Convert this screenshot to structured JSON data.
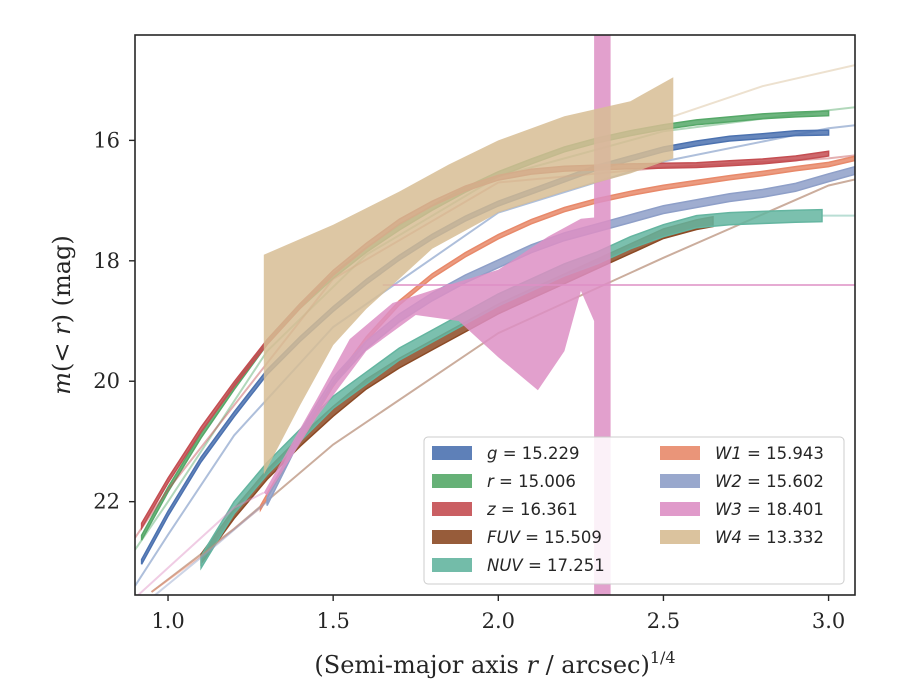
{
  "chart_data": {
    "type": "line",
    "xlabel_main": "(Semi-major axis ",
    "xlabel_var": "r",
    "xlabel_rest": " / arcsec)",
    "xlabel_sup": "1/4",
    "ylabel_main": "m(< r) (mag)",
    "ylabel_pre": "m",
    "ylabel_paren_open": "(< ",
    "ylabel_var": "r",
    "ylabel_paren_close": ") (mag)",
    "xlim": [
      0.9,
      3.08
    ],
    "ylim": [
      23.55,
      14.25
    ],
    "y_inverted": true,
    "grid": false,
    "legend_position": "lower-right",
    "xticks": [
      1.0,
      1.5,
      2.0,
      2.5,
      3.0
    ],
    "xtick_labels": [
      "1.0",
      "1.5",
      "2.0",
      "2.5",
      "3.0"
    ],
    "yticks": [
      16,
      18,
      20,
      22
    ],
    "ytick_labels": [
      "16",
      "18",
      "20",
      "22"
    ],
    "series": [
      {
        "name": "g = 15.229",
        "label_var": "g",
        "label_value": "= 15.229",
        "color": "#4c72b0",
        "kind": "band",
        "points": [
          [
            0.92,
            23.0
          ],
          [
            1.0,
            22.2
          ],
          [
            1.1,
            21.3
          ],
          [
            1.2,
            20.55
          ],
          [
            1.3,
            19.85
          ],
          [
            1.4,
            19.3
          ],
          [
            1.5,
            18.8
          ],
          [
            1.6,
            18.35
          ],
          [
            1.7,
            17.95
          ],
          [
            1.8,
            17.6
          ],
          [
            1.9,
            17.3
          ],
          [
            2.0,
            17.05
          ],
          [
            2.1,
            16.85
          ],
          [
            2.2,
            16.65
          ],
          [
            2.3,
            16.45
          ],
          [
            2.4,
            16.3
          ],
          [
            2.5,
            16.15
          ],
          [
            2.6,
            16.05
          ],
          [
            2.7,
            15.97
          ],
          [
            2.8,
            15.93
          ],
          [
            2.9,
            15.88
          ],
          [
            3.0,
            15.87
          ]
        ],
        "width": 0.08,
        "extension": [
          [
            0.9,
            23.4
          ],
          [
            1.0,
            22.55
          ],
          [
            1.2,
            20.9
          ],
          [
            1.5,
            19.1
          ],
          [
            2.0,
            17.2
          ],
          [
            2.5,
            16.35
          ],
          [
            3.0,
            15.8
          ],
          [
            3.08,
            15.75
          ]
        ]
      },
      {
        "name": "r = 15.006",
        "label_var": "r",
        "label_value": "= 15.006",
        "color": "#55a868",
        "kind": "band",
        "points": [
          [
            0.92,
            22.6
          ],
          [
            1.0,
            21.8
          ],
          [
            1.1,
            20.9
          ],
          [
            1.2,
            20.1
          ],
          [
            1.3,
            19.35
          ],
          [
            1.4,
            18.75
          ],
          [
            1.5,
            18.25
          ],
          [
            1.6,
            17.82
          ],
          [
            1.7,
            17.45
          ],
          [
            1.8,
            17.12
          ],
          [
            1.9,
            16.82
          ],
          [
            2.0,
            16.56
          ],
          [
            2.1,
            16.35
          ],
          [
            2.2,
            16.15
          ],
          [
            2.3,
            16.0
          ],
          [
            2.4,
            15.88
          ],
          [
            2.5,
            15.78
          ],
          [
            2.6,
            15.7
          ],
          [
            2.7,
            15.65
          ],
          [
            2.8,
            15.6
          ],
          [
            2.9,
            15.57
          ],
          [
            3.0,
            15.55
          ]
        ],
        "width": 0.08,
        "extension": [
          [
            0.9,
            22.8
          ],
          [
            1.0,
            22.0
          ],
          [
            1.3,
            19.5
          ],
          [
            1.6,
            17.9
          ],
          [
            2.0,
            16.6
          ],
          [
            2.5,
            15.85
          ],
          [
            3.0,
            15.5
          ],
          [
            3.08,
            15.45
          ]
        ]
      },
      {
        "name": "z = 16.361",
        "label_var": "z",
        "label_value": "= 16.361",
        "color": "#c44e52",
        "kind": "band",
        "points": [
          [
            0.92,
            22.4
          ],
          [
            1.0,
            21.65
          ],
          [
            1.1,
            20.8
          ],
          [
            1.2,
            20.05
          ],
          [
            1.3,
            19.35
          ],
          [
            1.4,
            18.75
          ],
          [
            1.5,
            18.2
          ],
          [
            1.6,
            17.75
          ],
          [
            1.7,
            17.35
          ],
          [
            1.8,
            17.05
          ],
          [
            1.9,
            16.8
          ],
          [
            2.0,
            16.62
          ],
          [
            2.1,
            16.52
          ],
          [
            2.2,
            16.47
          ],
          [
            2.3,
            16.45
          ],
          [
            2.4,
            16.43
          ],
          [
            2.5,
            16.42
          ],
          [
            2.6,
            16.41
          ],
          [
            2.7,
            16.38
          ],
          [
            2.8,
            16.35
          ],
          [
            2.9,
            16.3
          ],
          [
            3.0,
            16.22
          ]
        ],
        "width": 0.08,
        "extension": [
          [
            0.9,
            22.6
          ],
          [
            1.0,
            21.8
          ],
          [
            1.5,
            18.3
          ],
          [
            2.0,
            16.7
          ],
          [
            2.5,
            16.45
          ],
          [
            3.0,
            16.3
          ],
          [
            3.08,
            16.25
          ]
        ]
      },
      {
        "name": "FUV = 15.509",
        "label_var": "FUV",
        "label_value": "= 15.509",
        "color": "#8c4a25",
        "kind": "band",
        "points": [
          [
            1.1,
            22.95
          ],
          [
            1.2,
            22.2
          ],
          [
            1.3,
            21.55
          ],
          [
            1.4,
            21.0
          ],
          [
            1.5,
            20.5
          ],
          [
            1.6,
            20.05
          ],
          [
            1.7,
            19.7
          ],
          [
            1.8,
            19.4
          ],
          [
            1.9,
            19.1
          ],
          [
            2.0,
            18.8
          ],
          [
            2.1,
            18.55
          ],
          [
            2.2,
            18.3
          ],
          [
            2.3,
            18.05
          ],
          [
            2.4,
            17.8
          ],
          [
            2.5,
            17.55
          ],
          [
            2.6,
            17.4
          ],
          [
            2.65,
            17.35
          ]
        ],
        "width": 0.16,
        "extension": [
          [
            0.95,
            23.5
          ],
          [
            1.2,
            22.45
          ],
          [
            1.5,
            21.05
          ],
          [
            2.0,
            19.2
          ],
          [
            2.5,
            17.95
          ],
          [
            3.0,
            16.75
          ],
          [
            3.08,
            16.65
          ]
        ]
      },
      {
        "name": "NUV = 17.251",
        "label_var": "NUV",
        "label_value": "= 17.251",
        "color": "#64b5a0",
        "kind": "band",
        "points": [
          [
            1.1,
            23.0
          ],
          [
            1.2,
            22.1
          ],
          [
            1.3,
            21.45
          ],
          [
            1.4,
            20.9
          ],
          [
            1.5,
            20.35
          ],
          [
            1.6,
            19.95
          ],
          [
            1.7,
            19.55
          ],
          [
            1.8,
            19.25
          ],
          [
            1.9,
            18.95
          ],
          [
            2.0,
            18.65
          ],
          [
            2.1,
            18.4
          ],
          [
            2.2,
            18.15
          ],
          [
            2.3,
            17.95
          ],
          [
            2.4,
            17.7
          ],
          [
            2.5,
            17.5
          ],
          [
            2.6,
            17.35
          ],
          [
            2.7,
            17.3
          ],
          [
            2.8,
            17.28
          ],
          [
            2.9,
            17.26
          ],
          [
            2.98,
            17.25
          ]
        ],
        "width": 0.2,
        "extension": [
          [
            2.98,
            17.25
          ],
          [
            3.08,
            17.25
          ]
        ]
      },
      {
        "name": "W1 = 15.943",
        "label_var": "W1",
        "label_value": "= 15.943",
        "color": "#e8896a",
        "kind": "band",
        "points": [
          [
            1.28,
            22.1
          ],
          [
            1.4,
            20.95
          ],
          [
            1.5,
            20.05
          ],
          [
            1.6,
            19.3
          ],
          [
            1.7,
            18.7
          ],
          [
            1.8,
            18.25
          ],
          [
            1.9,
            17.9
          ],
          [
            2.0,
            17.6
          ],
          [
            2.1,
            17.35
          ],
          [
            2.2,
            17.15
          ],
          [
            2.3,
            17.0
          ],
          [
            2.4,
            16.88
          ],
          [
            2.5,
            16.78
          ],
          [
            2.6,
            16.7
          ],
          [
            2.7,
            16.62
          ],
          [
            2.8,
            16.55
          ],
          [
            2.9,
            16.47
          ],
          [
            3.0,
            16.4
          ],
          [
            3.08,
            16.3
          ]
        ],
        "width": 0.07,
        "extension": [
          [
            0.95,
            23.5
          ],
          [
            1.1,
            22.9
          ],
          [
            1.28,
            22.1
          ]
        ]
      },
      {
        "name": "W2 = 15.602",
        "label_var": "W2",
        "label_value": "= 15.602",
        "color": "#8e9fc8",
        "kind": "band",
        "points": [
          [
            1.3,
            22.0
          ],
          [
            1.4,
            20.9
          ],
          [
            1.5,
            20.0
          ],
          [
            1.6,
            19.4
          ],
          [
            1.7,
            18.95
          ],
          [
            1.8,
            18.6
          ],
          [
            1.9,
            18.3
          ],
          [
            2.0,
            18.05
          ],
          [
            2.1,
            17.8
          ],
          [
            2.2,
            17.6
          ],
          [
            2.3,
            17.45
          ],
          [
            2.4,
            17.3
          ],
          [
            2.5,
            17.15
          ],
          [
            2.6,
            17.05
          ],
          [
            2.7,
            16.95
          ],
          [
            2.8,
            16.88
          ],
          [
            2.9,
            16.78
          ],
          [
            3.0,
            16.62
          ],
          [
            3.08,
            16.5
          ]
        ],
        "width": 0.13,
        "extension": [
          [
            0.95,
            23.6
          ],
          [
            1.15,
            22.7
          ],
          [
            1.3,
            22.0
          ]
        ]
      },
      {
        "name": "W3 = 18.401",
        "label_var": "W3",
        "label_value": "= 18.401",
        "color": "#dd8fc4",
        "kind": "polygon",
        "polygon": [
          [
            1.29,
            21.85
          ],
          [
            1.45,
            20.3
          ],
          [
            1.55,
            19.3
          ],
          [
            1.68,
            18.7
          ],
          [
            1.85,
            18.4
          ],
          [
            2.0,
            18.15
          ],
          [
            2.15,
            17.6
          ],
          [
            2.25,
            17.3
          ],
          [
            2.29,
            17.28
          ],
          [
            2.29,
            14.25
          ],
          [
            2.34,
            14.25
          ],
          [
            2.34,
            23.55
          ],
          [
            2.29,
            23.55
          ],
          [
            2.29,
            19.0
          ],
          [
            2.25,
            18.5
          ],
          [
            2.2,
            19.5
          ],
          [
            2.12,
            20.15
          ],
          [
            2.0,
            19.6
          ],
          [
            1.88,
            19.0
          ],
          [
            1.75,
            18.9
          ],
          [
            1.6,
            19.5
          ],
          [
            1.45,
            20.6
          ],
          [
            1.3,
            21.9
          ]
        ],
        "hline": 18.401,
        "hline_range": [
          1.65,
          3.08
        ],
        "extension": [
          [
            0.9,
            23.6
          ],
          [
            1.0,
            23.1
          ],
          [
            1.2,
            22.1
          ],
          [
            1.29,
            21.85
          ]
        ]
      },
      {
        "name": "W4 = 13.332",
        "label_var": "W4",
        "label_value": "= 13.332",
        "color": "#d7bd94",
        "kind": "polygon",
        "polygon": [
          [
            1.29,
            17.9
          ],
          [
            1.5,
            17.4
          ],
          [
            1.7,
            16.85
          ],
          [
            1.85,
            16.4
          ],
          [
            2.0,
            16.0
          ],
          [
            2.2,
            15.6
          ],
          [
            2.4,
            15.35
          ],
          [
            2.53,
            14.95
          ],
          [
            2.53,
            16.3
          ],
          [
            2.4,
            16.55
          ],
          [
            2.2,
            16.85
          ],
          [
            2.0,
            17.2
          ],
          [
            1.8,
            17.8
          ],
          [
            1.6,
            18.8
          ],
          [
            1.5,
            19.4
          ],
          [
            1.4,
            20.4
          ],
          [
            1.29,
            21.55
          ]
        ],
        "extension": [
          [
            2.53,
            15.6
          ],
          [
            2.8,
            15.1
          ],
          [
            3.08,
            14.75
          ]
        ]
      }
    ]
  }
}
